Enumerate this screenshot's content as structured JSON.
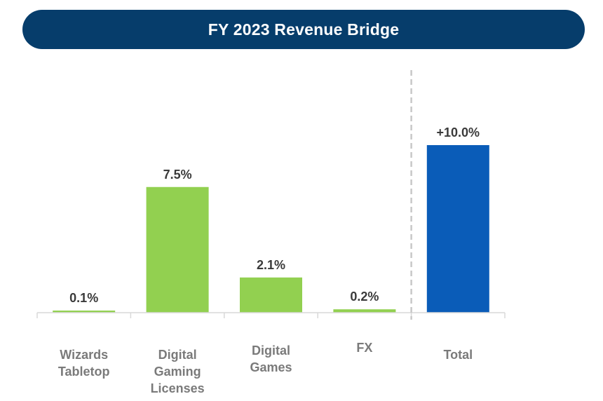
{
  "chart_data": {
    "type": "bar",
    "title": "FY 2023 Revenue Bridge",
    "categories": [
      "Wizards Tabletop",
      "Digital Gaming Licenses",
      "Digital Games",
      "FX",
      "Total"
    ],
    "category_lines": [
      [
        "Wizards",
        "Tabletop"
      ],
      [
        "Digital",
        "Gaming",
        "Licenses"
      ],
      [
        "Digital",
        "Games"
      ],
      [
        "FX"
      ],
      [
        "Total"
      ]
    ],
    "values": [
      0.1,
      7.5,
      2.1,
      0.2,
      10.0
    ],
    "value_labels": [
      "0.1%",
      "7.5%",
      "2.1%",
      "0.2%",
      "+10.0%"
    ],
    "bar_colors": [
      "#92d050",
      "#92d050",
      "#92d050",
      "#92d050",
      "#0a5cb8"
    ],
    "units": "%",
    "xlabel": "",
    "ylabel": "",
    "ylim": [
      0,
      10.0
    ],
    "grid": false,
    "legend": "none",
    "separator_before": "Total"
  },
  "colors": {
    "title_bg": "#063d6b",
    "title_text": "#ffffff",
    "increase": "#92d050",
    "total": "#0a5cb8"
  }
}
